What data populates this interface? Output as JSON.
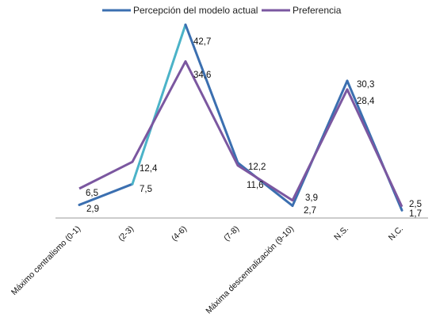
{
  "chart_data": {
    "type": "line",
    "categories": [
      "Máximo centralismo (0-1)",
      "(2-3)",
      "(4-6)",
      "(7-8)",
      "Máxima descentralización (9-10)",
      "N.S.",
      "N.C."
    ],
    "series": [
      {
        "name": "Percepción del modelo actual",
        "values": [
          2.9,
          7.5,
          42.7,
          12.2,
          2.7,
          30.3,
          1.7
        ],
        "labels": [
          "2,9",
          "7,5",
          "42,7",
          "12,2",
          "2,7",
          "30,3",
          "1,7"
        ],
        "color": "#3b6fb0",
        "color_light": "#4bb3c8"
      },
      {
        "name": "Preferencia",
        "values": [
          6.5,
          12.4,
          34.6,
          11.6,
          3.9,
          28.4,
          2.5
        ],
        "labels": [
          "6,5",
          "12,4",
          "34,6",
          "11,6",
          "3,9",
          "28,4",
          "2,5"
        ],
        "color": "#7b57a0"
      }
    ],
    "legend_position": "top",
    "grid": false,
    "ylim": [
      0,
      45
    ]
  }
}
